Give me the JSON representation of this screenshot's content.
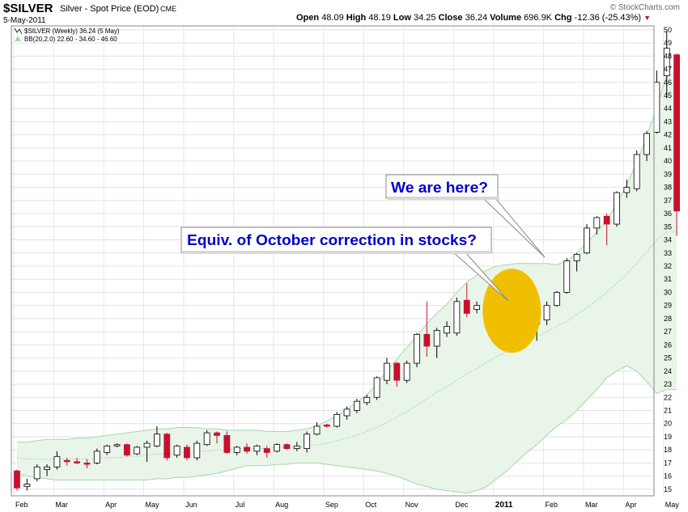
{
  "header": {
    "symbol": "$SILVER",
    "description": "Silver - Spot Price (EOD)",
    "exchange": "CME",
    "date": "5-May-2011",
    "open_label": "Open",
    "open": "48.09",
    "high_label": "High",
    "high": "48.19",
    "low_label": "Low",
    "low": "34.25",
    "close_label": "Close",
    "close": "36.24",
    "volume_label": "Volume",
    "volume": "696.9K",
    "chg_label": "Chg",
    "chg": "-12.36 (-25.43%)",
    "brand": "© StockCharts.com"
  },
  "legend": {
    "price": "$SILVER (Weekly) 36.24 (5 May)",
    "bb": "BB(20,2.0) 22.60 - 34.60 - 46.60"
  },
  "annotations": {
    "equiv": "Equiv. of October correction in stocks?",
    "here": "We are here?"
  },
  "colors": {
    "up_fill": "#ffffff",
    "down_fill": "#c8102e",
    "highlight_fill": "#cc44cc",
    "band_fill": "#e8f5e8",
    "band_line": "#aad6aa",
    "circle": "#f0c000",
    "callout_text": "#0000cc"
  },
  "chart_data": {
    "type": "candlestick",
    "title": "$SILVER Silver - Spot Price (EOD)",
    "period": "weekly",
    "ylim": [
      14.5,
      50.3
    ],
    "yticks": [
      15,
      16,
      17,
      18,
      19,
      20,
      21,
      22,
      23,
      24,
      25,
      26,
      27,
      28,
      29,
      30,
      31,
      32,
      33,
      34,
      35,
      36,
      37,
      38,
      39,
      40,
      41,
      42,
      43,
      44,
      45,
      46,
      47,
      48,
      49,
      50
    ],
    "xticks": [
      {
        "label": "Feb",
        "week": 0
      },
      {
        "label": "Mar",
        "week": 4
      },
      {
        "label": "Apr",
        "week": 9
      },
      {
        "label": "May",
        "week": 13
      },
      {
        "label": "Jun",
        "week": 17
      },
      {
        "label": "Jul",
        "week": 22
      },
      {
        "label": "Aug",
        "week": 26
      },
      {
        "label": "Sep",
        "week": 31
      },
      {
        "label": "Oct",
        "week": 35
      },
      {
        "label": "Nov",
        "week": 39
      },
      {
        "label": "Dec",
        "week": 44
      },
      {
        "label": "2011",
        "week": 48
      },
      {
        "label": "Feb",
        "week": 53
      },
      {
        "label": "Mar",
        "week": 57
      },
      {
        "label": "Apr",
        "week": 61
      },
      {
        "label": "May",
        "week": 65
      }
    ],
    "candles": [
      {
        "o": 16.4,
        "h": 16.5,
        "l": 14.9,
        "c": 15.1
      },
      {
        "o": 15.2,
        "h": 15.8,
        "l": 14.9,
        "c": 15.4
      },
      {
        "o": 15.8,
        "h": 16.9,
        "l": 15.6,
        "c": 16.7
      },
      {
        "o": 16.5,
        "h": 16.9,
        "l": 16.0,
        "c": 16.7
      },
      {
        "o": 16.7,
        "h": 17.9,
        "l": 16.5,
        "c": 17.5
      },
      {
        "o": 17.2,
        "h": 17.4,
        "l": 16.8,
        "c": 17.1
      },
      {
        "o": 17.1,
        "h": 17.4,
        "l": 16.9,
        "c": 17.0
      },
      {
        "o": 17.0,
        "h": 17.3,
        "l": 16.6,
        "c": 16.9
      },
      {
        "o": 17.0,
        "h": 18.1,
        "l": 16.9,
        "c": 17.9
      },
      {
        "o": 17.8,
        "h": 18.4,
        "l": 17.6,
        "c": 18.3
      },
      {
        "o": 18.3,
        "h": 18.5,
        "l": 18.2,
        "c": 18.4
      },
      {
        "o": 18.4,
        "h": 18.5,
        "l": 17.5,
        "c": 17.6
      },
      {
        "o": 17.7,
        "h": 18.3,
        "l": 17.6,
        "c": 18.2
      },
      {
        "o": 18.2,
        "h": 18.7,
        "l": 17.1,
        "c": 18.5
      },
      {
        "o": 18.3,
        "h": 19.8,
        "l": 18.2,
        "c": 19.2
      },
      {
        "o": 19.2,
        "h": 19.3,
        "l": 17.2,
        "c": 17.4
      },
      {
        "o": 17.6,
        "h": 18.4,
        "l": 17.4,
        "c": 18.3
      },
      {
        "o": 18.2,
        "h": 18.4,
        "l": 17.2,
        "c": 17.4
      },
      {
        "o": 17.4,
        "h": 18.7,
        "l": 17.2,
        "c": 18.5
      },
      {
        "o": 18.4,
        "h": 19.5,
        "l": 18.3,
        "c": 19.3
      },
      {
        "o": 19.3,
        "h": 19.4,
        "l": 18.5,
        "c": 19.1
      },
      {
        "o": 19.1,
        "h": 19.4,
        "l": 17.7,
        "c": 17.8
      },
      {
        "o": 17.8,
        "h": 18.3,
        "l": 17.6,
        "c": 18.2
      },
      {
        "o": 18.2,
        "h": 18.5,
        "l": 17.7,
        "c": 17.9
      },
      {
        "o": 17.9,
        "h": 18.4,
        "l": 17.6,
        "c": 18.3
      },
      {
        "o": 18.1,
        "h": 18.3,
        "l": 17.4,
        "c": 17.8
      },
      {
        "o": 17.9,
        "h": 18.5,
        "l": 17.8,
        "c": 18.4
      },
      {
        "o": 18.4,
        "h": 18.5,
        "l": 18.0,
        "c": 18.1
      },
      {
        "o": 18.1,
        "h": 18.6,
        "l": 17.9,
        "c": 18.3
      },
      {
        "o": 18.1,
        "h": 19.4,
        "l": 17.8,
        "c": 19.2
      },
      {
        "o": 19.2,
        "h": 20.1,
        "l": 19.1,
        "c": 19.8
      },
      {
        "o": 19.9,
        "h": 20.0,
        "l": 19.7,
        "c": 19.8
      },
      {
        "o": 19.8,
        "h": 20.9,
        "l": 19.7,
        "c": 20.7
      },
      {
        "o": 20.6,
        "h": 21.3,
        "l": 20.3,
        "c": 21.1
      },
      {
        "o": 21.0,
        "h": 21.9,
        "l": 20.8,
        "c": 21.7
      },
      {
        "o": 21.6,
        "h": 22.2,
        "l": 21.4,
        "c": 22.0
      },
      {
        "o": 22.0,
        "h": 23.6,
        "l": 21.8,
        "c": 23.5
      },
      {
        "o": 23.3,
        "h": 25.0,
        "l": 23.0,
        "c": 24.6
      },
      {
        "o": 24.6,
        "h": 24.7,
        "l": 22.8,
        "c": 23.3
      },
      {
        "o": 23.3,
        "h": 24.8,
        "l": 23.1,
        "c": 24.6
      },
      {
        "o": 24.6,
        "h": 26.9,
        "l": 24.3,
        "c": 26.8
      },
      {
        "o": 26.8,
        "h": 29.3,
        "l": 25.1,
        "c": 25.9
      },
      {
        "o": 25.9,
        "h": 27.3,
        "l": 25.0,
        "c": 27.1
      },
      {
        "o": 26.9,
        "h": 27.8,
        "l": 26.6,
        "c": 27.4
      },
      {
        "o": 26.9,
        "h": 29.6,
        "l": 26.7,
        "c": 29.3
      },
      {
        "o": 29.4,
        "h": 30.7,
        "l": 28.1,
        "c": 28.4
      },
      {
        "o": 28.7,
        "h": 29.3,
        "l": 28.4,
        "c": 29.0
      },
      {
        "o": 29.2,
        "h": 29.5,
        "l": 28.8,
        "c": 29.4
      },
      {
        "o": 29.3,
        "h": 31.2,
        "l": 28.5,
        "c": 31.0
      },
      {
        "o": 31.1,
        "h": 31.3,
        "l": 28.5,
        "c": 28.6,
        "highlight": true
      },
      {
        "o": 28.6,
        "h": 29.2,
        "l": 28.1,
        "c": 28.2,
        "highlight": true
      },
      {
        "o": 28.2,
        "h": 29.2,
        "l": 27.1,
        "c": 27.2,
        "highlight": true
      },
      {
        "o": 27.6,
        "h": 28.2,
        "l": 26.3,
        "c": 27.9
      },
      {
        "o": 27.9,
        "h": 29.3,
        "l": 27.5,
        "c": 29.0
      },
      {
        "o": 29.0,
        "h": 30.1,
        "l": 28.9,
        "c": 30.0
      },
      {
        "o": 30.0,
        "h": 32.6,
        "l": 29.9,
        "c": 32.4
      },
      {
        "o": 32.4,
        "h": 33.0,
        "l": 31.6,
        "c": 32.9
      },
      {
        "o": 33.0,
        "h": 35.2,
        "l": 32.9,
        "c": 34.9
      },
      {
        "o": 34.9,
        "h": 35.8,
        "l": 34.4,
        "c": 35.7
      },
      {
        "o": 35.8,
        "h": 36.0,
        "l": 33.6,
        "c": 35.2
      },
      {
        "o": 35.2,
        "h": 37.7,
        "l": 35.0,
        "c": 37.6
      },
      {
        "o": 37.6,
        "h": 38.6,
        "l": 37.2,
        "c": 38.0
      },
      {
        "o": 37.9,
        "h": 40.8,
        "l": 37.7,
        "c": 40.5
      },
      {
        "o": 40.5,
        "h": 42.3,
        "l": 40.0,
        "c": 42.1
      },
      {
        "o": 42.2,
        "h": 46.9,
        "l": 42.1,
        "c": 46.0
      },
      {
        "o": 46.5,
        "h": 49.9,
        "l": 44.8,
        "c": 48.6
      },
      {
        "o": 48.1,
        "h": 48.2,
        "l": 34.3,
        "c": 36.2
      }
    ],
    "bollinger": {
      "period": 20,
      "stdev": 2.0,
      "upper": [
        18.6,
        18.6,
        18.7,
        18.8,
        18.8,
        18.8,
        18.9,
        18.9,
        19.0,
        19.1,
        19.2,
        19.3,
        19.4,
        19.5,
        19.6,
        19.6,
        19.7,
        19.7,
        19.7,
        19.6,
        19.6,
        19.5,
        19.5,
        19.5,
        19.5,
        19.4,
        19.4,
        19.4,
        19.5,
        19.6,
        19.8,
        20.2,
        20.6,
        21.1,
        21.6,
        22.2,
        23.0,
        24.0,
        24.9,
        25.8,
        26.7,
        27.6,
        28.4,
        29.1,
        30.0,
        30.8,
        31.3,
        31.7,
        32.0,
        32.1,
        32.2,
        32.2,
        32.2,
        32.2,
        32.1,
        32.4,
        33.0,
        33.8,
        34.6,
        35.5,
        36.8,
        38.2,
        39.9,
        41.9,
        44.1,
        46.6,
        46.6
      ],
      "middle": [
        17.4,
        17.3,
        17.3,
        17.3,
        17.3,
        17.3,
        17.3,
        17.3,
        17.3,
        17.4,
        17.4,
        17.5,
        17.5,
        17.6,
        17.7,
        17.7,
        17.8,
        17.8,
        17.9,
        17.9,
        18.0,
        18.0,
        18.1,
        18.1,
        18.1,
        18.1,
        18.2,
        18.2,
        18.2,
        18.3,
        18.4,
        18.5,
        18.7,
        18.9,
        19.1,
        19.4,
        19.7,
        20.1,
        20.5,
        20.9,
        21.4,
        21.9,
        22.4,
        22.8,
        23.3,
        23.8,
        24.2,
        24.7,
        25.1,
        25.5,
        25.9,
        26.3,
        26.6,
        27.0,
        27.4,
        27.8,
        28.3,
        28.8,
        29.4,
        30.0,
        30.7,
        31.4,
        32.2,
        33.1,
        34.0,
        34.6,
        34.6
      ],
      "lower": [
        16.2,
        16.0,
        15.9,
        15.8,
        15.7,
        15.7,
        15.7,
        15.7,
        15.7,
        15.7,
        15.7,
        15.7,
        15.7,
        15.7,
        15.8,
        15.8,
        15.9,
        15.9,
        16.0,
        16.1,
        16.2,
        16.4,
        16.6,
        16.8,
        16.8,
        16.8,
        16.9,
        16.9,
        17.0,
        17.0,
        17.0,
        16.9,
        16.8,
        16.7,
        16.6,
        16.5,
        16.4,
        16.2,
        16.0,
        15.7,
        15.4,
        15.2,
        15.0,
        14.9,
        14.8,
        14.7,
        14.9,
        15.2,
        15.8,
        16.4,
        17.1,
        17.8,
        18.4,
        19.1,
        19.8,
        20.3,
        21.0,
        21.8,
        22.6,
        23.5,
        24.0,
        24.4,
        24.0,
        23.2,
        22.3,
        22.6,
        22.6
      ]
    }
  }
}
